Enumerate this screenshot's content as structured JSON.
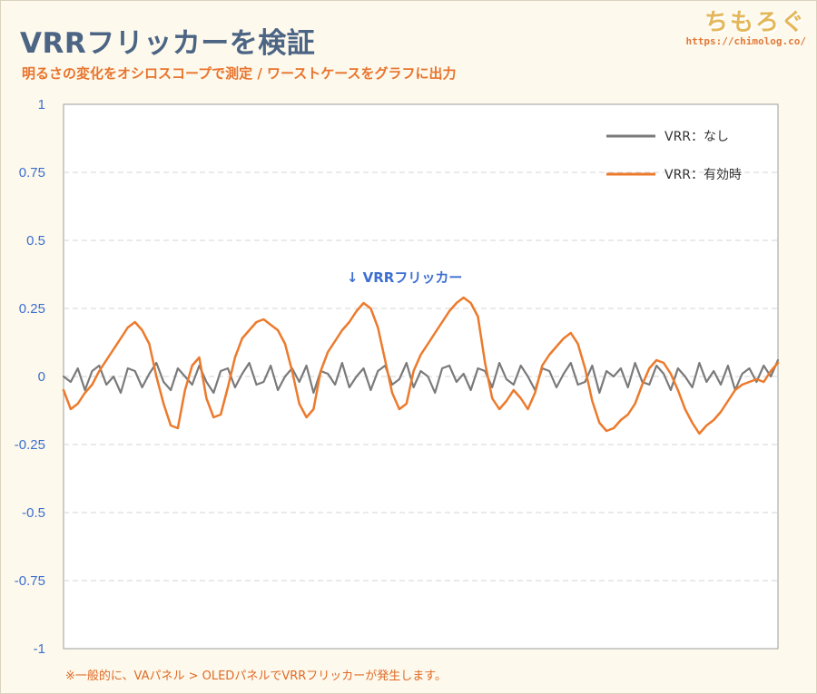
{
  "header": {
    "title": "VRRフリッカーを検証",
    "subtitle": "明るさの変化をオシロスコープで測定 / ワーストケースをグラフに出力"
  },
  "brand": {
    "logo": "ちもろぐ",
    "url": "https://chimolog.co/"
  },
  "footnote": "※一般的に、VAパネル > OLEDパネルでVRRフリッカーが発生します。",
  "chart_data": {
    "type": "line",
    "title": "VRRフリッカーを検証",
    "xlabel": "",
    "ylabel": "",
    "ylim": [
      -1,
      1
    ],
    "yticks": [
      1,
      0.75,
      0.5,
      0.25,
      0,
      -0.25,
      -0.5,
      -0.75,
      -1
    ],
    "ytick_labels": [
      "1",
      "0.75",
      "0.5",
      "0.25",
      "0",
      "-0.25",
      "-0.5",
      "-0.75",
      "-1"
    ],
    "grid": "horizontal dashed",
    "legend_position": "top-right",
    "x": [
      0,
      1,
      2,
      3,
      4,
      5,
      6,
      7,
      8,
      9,
      10,
      11,
      12,
      13,
      14,
      15,
      16,
      17,
      18,
      19,
      20,
      21,
      22,
      23,
      24,
      25,
      26,
      27,
      28,
      29,
      30,
      31,
      32,
      33,
      34,
      35,
      36,
      37,
      38,
      39,
      40,
      41,
      42,
      43,
      44,
      45,
      46,
      47,
      48,
      49,
      50,
      51,
      52,
      53,
      54,
      55,
      56,
      57,
      58,
      59,
      60,
      61,
      62,
      63,
      64,
      65,
      66,
      67,
      68,
      69,
      70,
      71,
      72,
      73,
      74,
      75,
      76,
      77,
      78,
      79,
      80,
      81,
      82,
      83,
      84,
      85,
      86,
      87,
      88,
      89,
      90,
      91,
      92,
      93,
      94,
      95,
      96,
      97,
      98,
      99,
      100
    ],
    "series": [
      {
        "name": "VRR：なし",
        "color": "#7a7a7a",
        "values": [
          0.0,
          -0.02,
          0.03,
          -0.05,
          0.02,
          0.04,
          -0.03,
          0.0,
          -0.06,
          0.03,
          0.02,
          -0.04,
          0.01,
          0.05,
          -0.02,
          -0.05,
          0.03,
          0.0,
          -0.03,
          0.04,
          -0.02,
          -0.06,
          0.02,
          0.03,
          -0.04,
          0.01,
          0.05,
          -0.03,
          -0.02,
          0.04,
          -0.05,
          0.0,
          0.03,
          -0.02,
          0.04,
          -0.06,
          0.02,
          0.01,
          -0.03,
          0.05,
          -0.04,
          0.0,
          0.03,
          -0.05,
          0.02,
          0.04,
          -0.03,
          -0.01,
          0.05,
          -0.04,
          0.02,
          0.0,
          -0.06,
          0.03,
          0.04,
          -0.02,
          0.01,
          -0.05,
          0.03,
          0.02,
          -0.04,
          0.05,
          -0.01,
          -0.03,
          0.04,
          0.0,
          -0.05,
          0.03,
          0.02,
          -0.04,
          0.01,
          0.05,
          -0.03,
          -0.02,
          0.04,
          -0.06,
          0.02,
          0.0,
          0.03,
          -0.04,
          0.05,
          -0.02,
          -0.03,
          0.04,
          0.01,
          -0.05,
          0.03,
          0.0,
          -0.04,
          0.05,
          -0.02,
          0.02,
          -0.03,
          0.04,
          -0.05,
          0.01,
          0.03,
          -0.02,
          0.04,
          0.0,
          0.06
        ]
      },
      {
        "name": "VRR：有効時",
        "color": "#ec7a2c",
        "values": [
          -0.05,
          -0.12,
          -0.1,
          -0.06,
          -0.03,
          0.02,
          0.06,
          0.1,
          0.14,
          0.18,
          0.2,
          0.17,
          0.12,
          0.0,
          -0.1,
          -0.18,
          -0.19,
          -0.05,
          0.04,
          0.07,
          -0.08,
          -0.15,
          -0.14,
          -0.04,
          0.07,
          0.14,
          0.17,
          0.2,
          0.21,
          0.19,
          0.17,
          0.12,
          0.02,
          -0.1,
          -0.15,
          -0.12,
          0.02,
          0.09,
          0.13,
          0.17,
          0.2,
          0.24,
          0.27,
          0.25,
          0.18,
          0.06,
          -0.06,
          -0.12,
          -0.1,
          0.02,
          0.08,
          0.12,
          0.16,
          0.2,
          0.24,
          0.27,
          0.29,
          0.27,
          0.22,
          0.05,
          -0.08,
          -0.12,
          -0.09,
          -0.05,
          -0.08,
          -0.12,
          -0.06,
          0.04,
          0.08,
          0.11,
          0.14,
          0.16,
          0.12,
          0.03,
          -0.09,
          -0.17,
          -0.2,
          -0.19,
          -0.16,
          -0.14,
          -0.1,
          -0.03,
          0.03,
          0.06,
          0.05,
          0.01,
          -0.05,
          -0.12,
          -0.17,
          -0.21,
          -0.18,
          -0.16,
          -0.13,
          -0.09,
          -0.05,
          -0.03,
          -0.02,
          -0.01,
          -0.02,
          0.02,
          0.05
        ]
      }
    ],
    "annotations": [
      {
        "text": "↓ VRRフリッカー",
        "x": 49,
        "y": 0.34
      }
    ]
  }
}
